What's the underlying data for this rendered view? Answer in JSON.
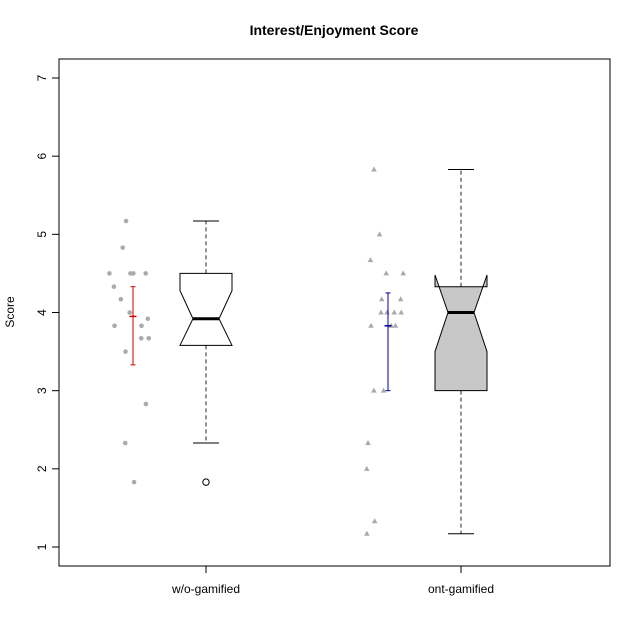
{
  "chart_data": {
    "type": "boxplot",
    "title": "Interest/Enjoyment Score",
    "xlabel": "",
    "ylabel": "Score",
    "ylim": [
      0.75,
      7.3
    ],
    "yticks": [
      "1",
      "2",
      "3",
      "4",
      "5",
      "6",
      "7"
    ],
    "categories": [
      "w/o-gamified",
      "ont-gamified"
    ],
    "box_fill_colors": [
      "#ffffff",
      "#c8c8c8"
    ],
    "point_color": "#aaaaaa",
    "groups": [
      {
        "category": "w/o-gamified",
        "box": {
          "whisker_low": 2.33,
          "q1": 3.58,
          "median": 3.92,
          "q3": 4.5,
          "whisker_high": 5.17,
          "notch_low": 3.58,
          "notch_high": 4.28
        },
        "outliers": [
          1.83
        ],
        "points": [
          4.5,
          4.5,
          4.5,
          4.83,
          5.17,
          4.5,
          4.33,
          4.17,
          4.0,
          3.92,
          3.83,
          3.83,
          3.67,
          3.67,
          3.5,
          2.83,
          2.33,
          1.83
        ],
        "mean": 3.95,
        "error_bar": {
          "low": 3.33,
          "high": 4.33,
          "color": "#cc0000"
        }
      },
      {
        "category": "ont-gamified",
        "box": {
          "whisker_low": 1.17,
          "q1": 3.0,
          "median": 4.0,
          "q3": 4.33,
          "whisker_high": 5.83,
          "notch_low": 3.5,
          "notch_high": 4.48
        },
        "outliers": [],
        "points": [
          5.83,
          5.0,
          4.67,
          4.5,
          4.5,
          4.17,
          4.17,
          4.0,
          4.0,
          4.0,
          4.0,
          3.83,
          3.83,
          3.83,
          3.0,
          3.0,
          2.33,
          2.0,
          1.33,
          1.17
        ],
        "mean": 3.83,
        "error_bar": {
          "low": 3.0,
          "high": 4.25,
          "color": "#000099"
        }
      }
    ]
  }
}
